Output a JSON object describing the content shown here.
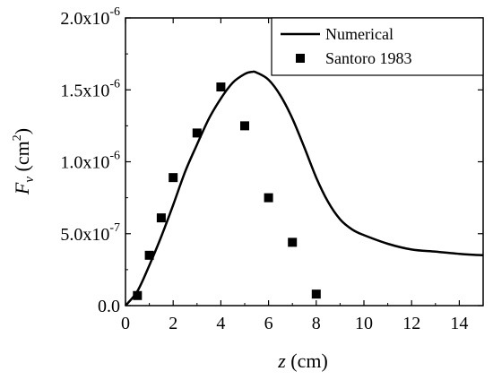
{
  "chart_data": {
    "type": "line",
    "title": "",
    "xlabel_var": "z",
    "xlabel_unit": " (cm)",
    "ylabel_var": "F",
    "ylabel_sub": "v",
    "ylabel_unit_pre": " (cm",
    "ylabel_unit_sup": "2",
    "ylabel_unit_post": ")",
    "xlim": [
      0,
      15
    ],
    "ylim": [
      0,
      2e-06
    ],
    "grid": false,
    "legend_position": "top-right",
    "x_ticks": [
      0,
      2,
      4,
      6,
      8,
      10,
      12,
      14
    ],
    "x_tick_labels": [
      "0",
      "2",
      "4",
      "6",
      "8",
      "10",
      "12",
      "14"
    ],
    "y_ticks": [
      {
        "value": 0,
        "mantissa": "0.0",
        "exponent": ""
      },
      {
        "value": 5e-07,
        "mantissa": "5.0x10",
        "exponent": "-7"
      },
      {
        "value": 1e-06,
        "mantissa": "1.0x10",
        "exponent": "-6"
      },
      {
        "value": 1.5e-06,
        "mantissa": "1.5x10",
        "exponent": "-6"
      },
      {
        "value": 2e-06,
        "mantissa": "2.0x10",
        "exponent": "-6"
      }
    ],
    "series": [
      {
        "name": "Numerical",
        "kind": "line",
        "color": "#000000",
        "x": [
          0,
          0.5,
          1,
          1.5,
          2,
          2.5,
          3,
          3.5,
          4,
          4.5,
          5,
          5.3,
          5.5,
          6,
          6.5,
          7,
          7.5,
          8,
          8.5,
          9,
          9.5,
          10,
          11,
          12,
          13,
          14,
          15
        ],
        "y": [
          0,
          1e-07,
          2.8e-07,
          4.8e-07,
          7e-07,
          9.3e-07,
          1.12e-06,
          1.3e-06,
          1.44e-06,
          1.55e-06,
          1.61e-06,
          1.625e-06,
          1.62e-06,
          1.57e-06,
          1.46e-06,
          1.3e-06,
          1.1e-06,
          8.9e-07,
          7.2e-07,
          6e-07,
          5.3e-07,
          4.9e-07,
          4.3e-07,
          3.9e-07,
          3.75e-07,
          3.6e-07,
          3.5e-07
        ]
      },
      {
        "name": "Santoro 1983",
        "kind": "scatter",
        "marker": "square",
        "color": "#000000",
        "x": [
          0.5,
          1,
          1.5,
          2,
          3,
          4,
          5,
          6,
          7,
          8
        ],
        "y": [
          7e-08,
          3.5e-07,
          6.1e-07,
          8.9e-07,
          1.2e-06,
          1.52e-06,
          1.25e-06,
          7.5e-07,
          4.4e-07,
          8e-08
        ]
      }
    ]
  }
}
